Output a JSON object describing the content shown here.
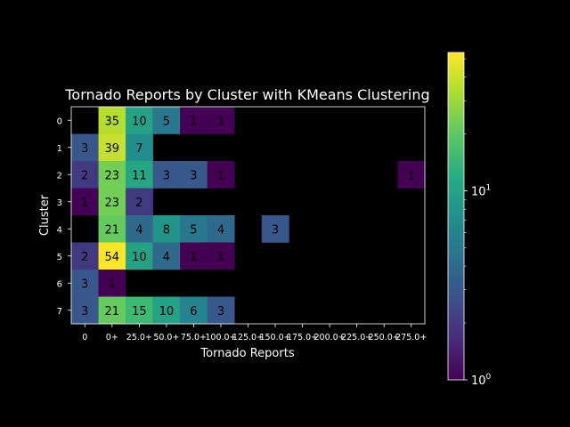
{
  "chart_data": {
    "type": "heatmap",
    "title": "Tornado Reports by Cluster with KMeans Clustering",
    "xlabel": "Tornado Reports",
    "ylabel": "Cluster",
    "x_categories": [
      "0",
      "0+",
      "25.0+",
      "50.0+",
      "75.0+",
      "100.0+",
      "125.0+",
      "150.0+",
      "175.0+",
      "200.0+",
      "225.0+",
      "250.0+",
      "275.0+"
    ],
    "y_categories": [
      "0",
      "1",
      "2",
      "3",
      "4",
      "5",
      "6",
      "7"
    ],
    "values": [
      [
        null,
        35,
        10,
        5,
        1,
        1,
        null,
        null,
        null,
        null,
        null,
        null,
        null
      ],
      [
        3,
        39,
        7,
        null,
        null,
        null,
        null,
        null,
        null,
        null,
        null,
        null,
        null
      ],
      [
        2,
        23,
        11,
        3,
        3,
        1,
        null,
        null,
        null,
        null,
        null,
        null,
        1
      ],
      [
        1,
        23,
        2,
        null,
        null,
        null,
        null,
        null,
        null,
        null,
        null,
        null,
        null
      ],
      [
        null,
        21,
        4,
        8,
        5,
        4,
        null,
        3,
        null,
        null,
        null,
        null,
        null
      ],
      [
        2,
        54,
        10,
        4,
        1,
        1,
        null,
        null,
        null,
        null,
        null,
        null,
        null
      ],
      [
        3,
        1,
        null,
        null,
        null,
        null,
        null,
        null,
        null,
        null,
        null,
        null,
        null
      ],
      [
        3,
        21,
        15,
        10,
        6,
        3,
        null,
        null,
        null,
        null,
        null,
        null,
        null
      ]
    ],
    "colorbar": {
      "scale": "log",
      "colormap": "viridis",
      "min": 1,
      "max": 54,
      "tick_labels": [
        {
          "value": 1,
          "base": "10",
          "exp": "0"
        },
        {
          "value": 10,
          "base": "10",
          "exp": "1"
        }
      ]
    },
    "colors": {
      "background": "#000000",
      "text": "#ffffff",
      "cell_text": "#000000"
    }
  }
}
